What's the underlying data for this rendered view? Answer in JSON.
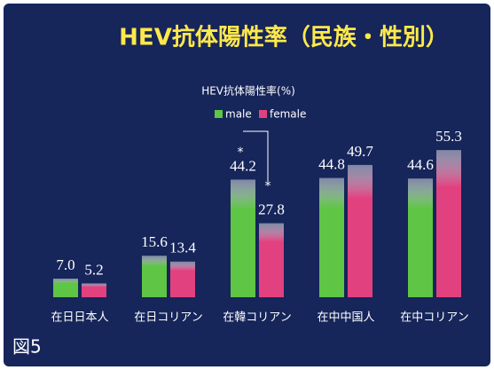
{
  "chart_data": {
    "type": "bar",
    "title": "HEV抗体陽性率（民族・性別）",
    "y_label": "HEV抗体陽性率(%)",
    "figure_label": "図5",
    "categories": [
      "在日日本人",
      "在日コリアン",
      "在韓コリアン",
      "在中中国人",
      "在中コリアン"
    ],
    "series": [
      {
        "name": "male",
        "color": "#5fc545",
        "values": [
          7.0,
          15.6,
          44.2,
          44.8,
          44.6
        ],
        "value_labels": [
          "7.0",
          "15.6",
          "44.2",
          "44.8",
          "44.6"
        ]
      },
      {
        "name": "female",
        "color": "#e2417f",
        "values": [
          5.2,
          13.4,
          27.8,
          49.7,
          55.3
        ],
        "value_labels": [
          "5.2",
          "13.4",
          "27.8",
          "49.7",
          "55.3"
        ]
      }
    ],
    "annotations": [
      "*",
      "*"
    ]
  }
}
